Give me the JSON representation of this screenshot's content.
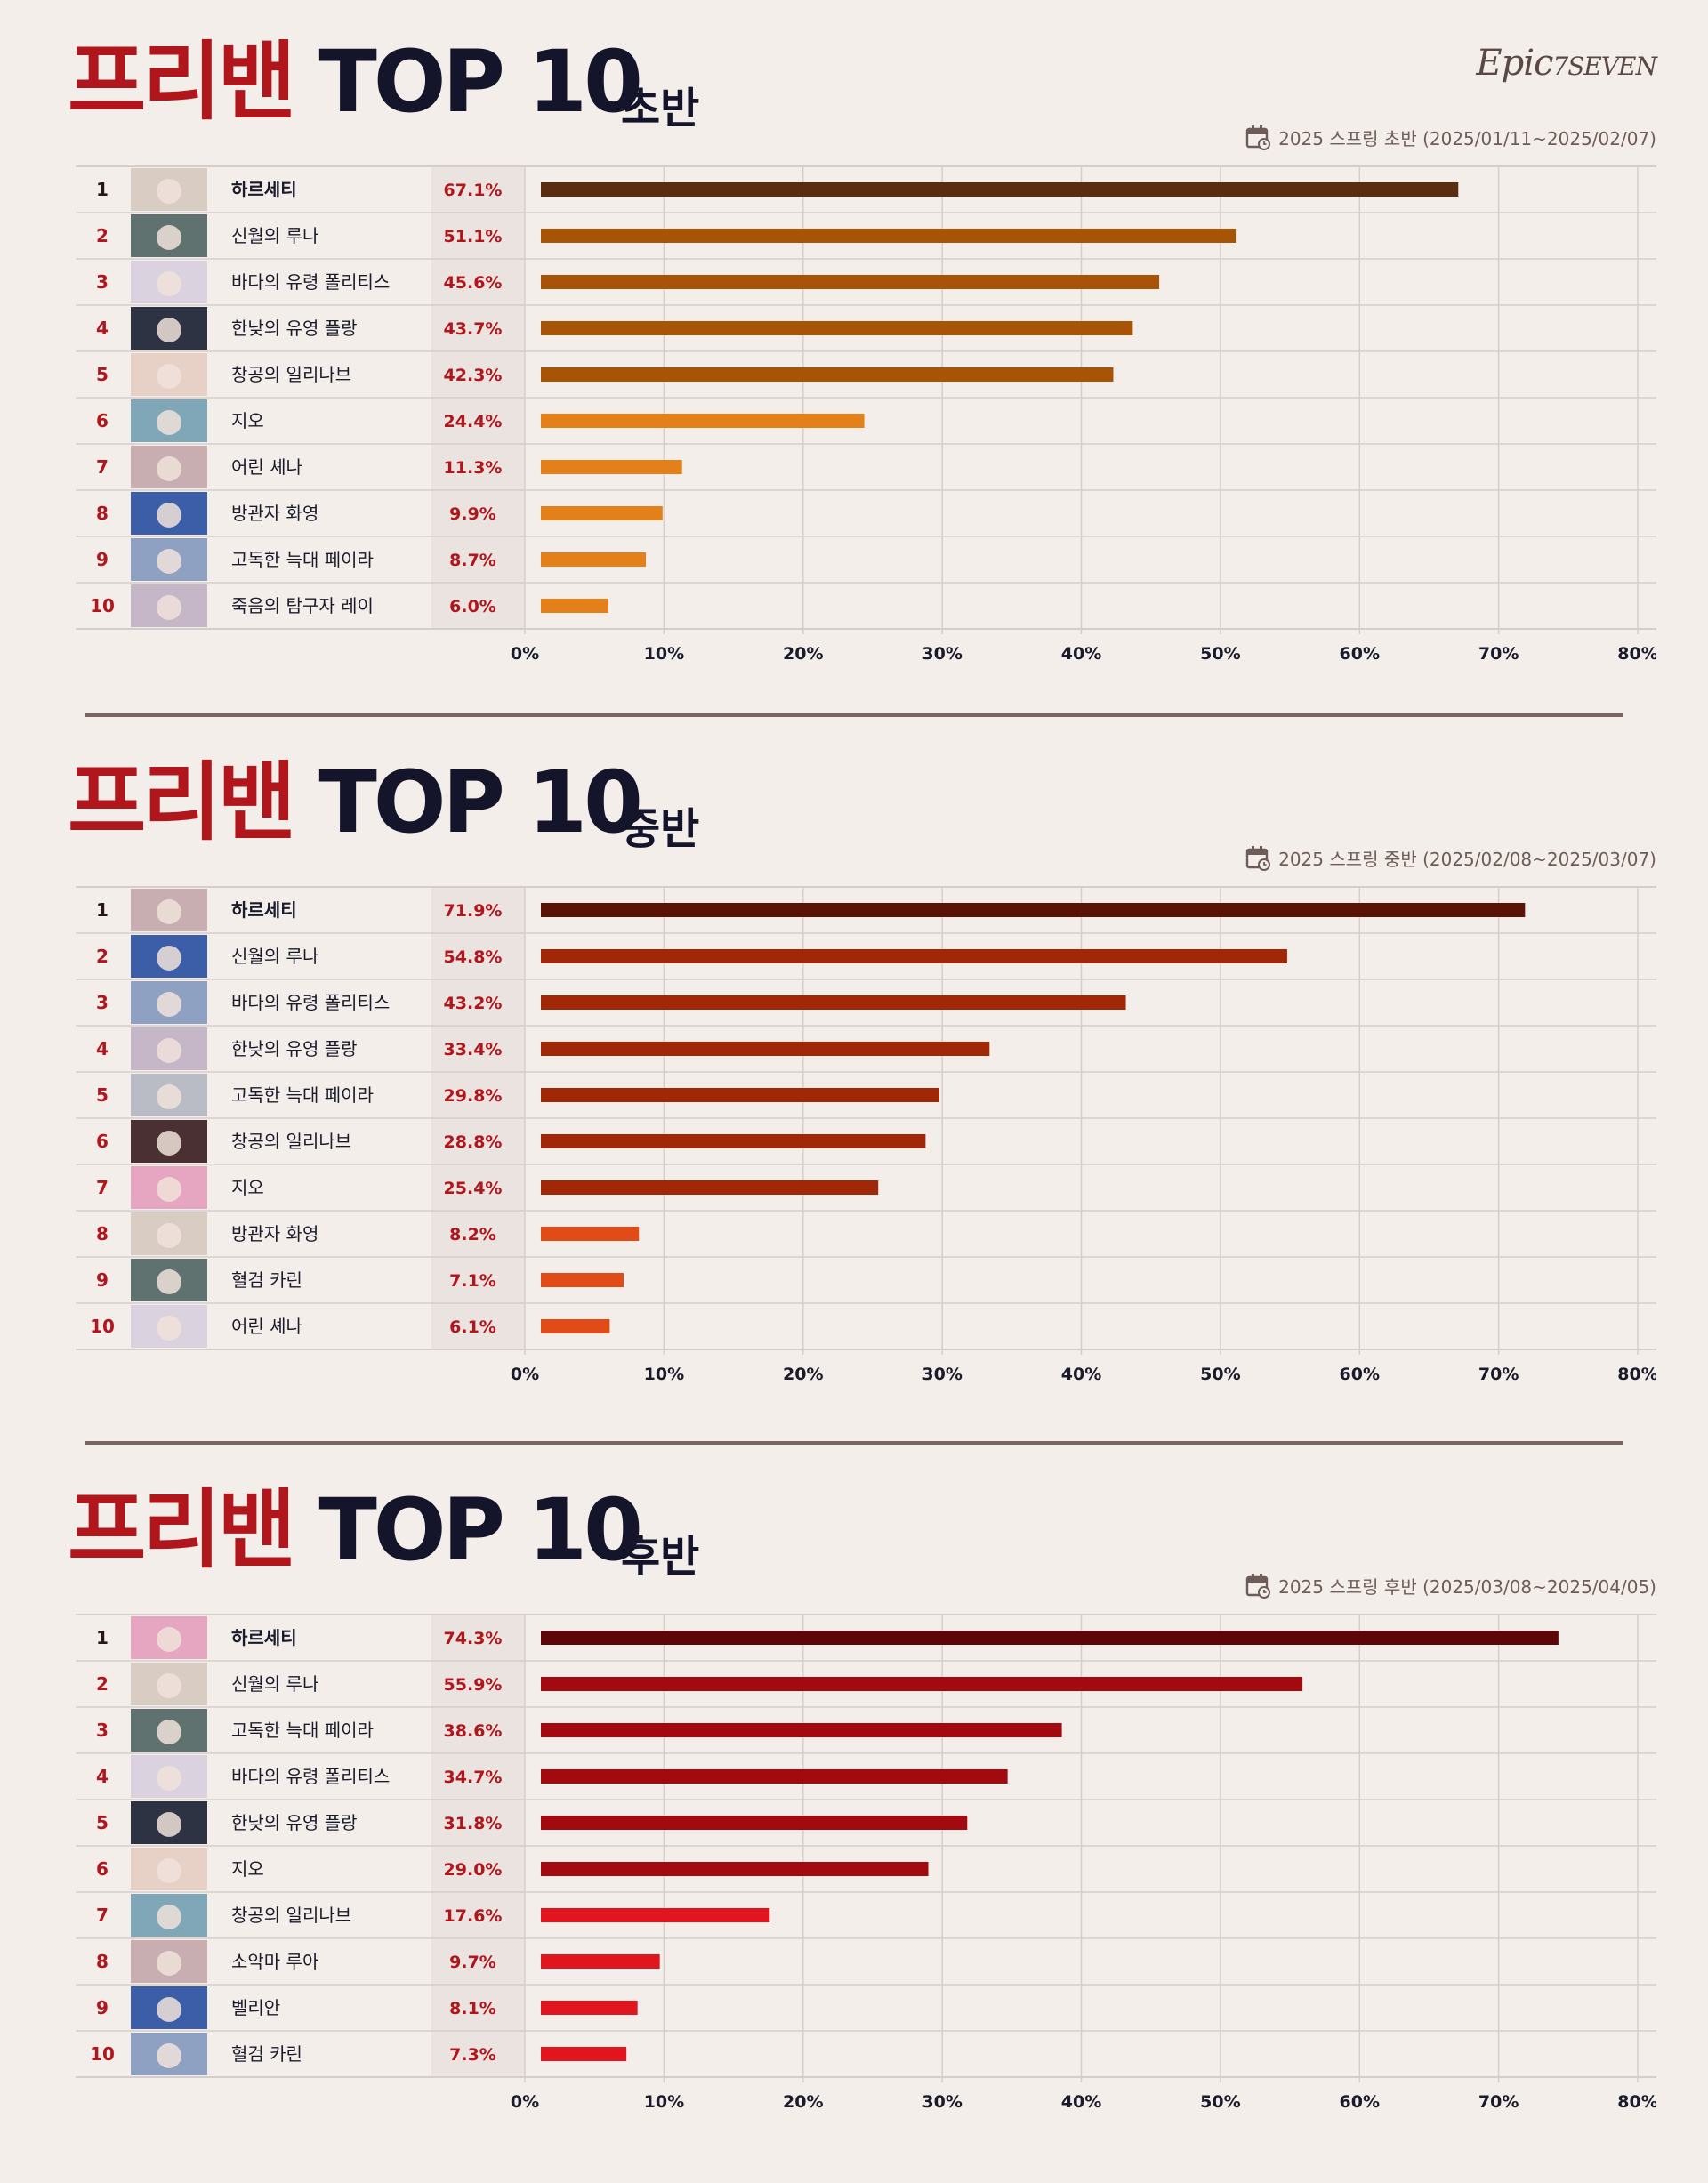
{
  "logo": {
    "text_epic": "Epic",
    "text_seven": "7SEVEN"
  },
  "sections": [
    {
      "title_red": "프리밴",
      "title_dark": " TOP 10",
      "subtitle": "초반",
      "period": "2025 스프링 초반 (2025/01/11~2025/02/07)",
      "colors": {
        "top": "#5a2c10",
        "mid": "#a85406",
        "low": "#e48019"
      }
    },
    {
      "title_red": "프리밴",
      "title_dark": " TOP 10",
      "subtitle": "중반",
      "period": "2025 스프링 중반 (2025/02/08~2025/03/07)",
      "colors": {
        "top": "#5a1406",
        "mid": "#a12806",
        "low": "#e04b18"
      }
    },
    {
      "title_red": "프리밴",
      "title_dark": " TOP 10",
      "subtitle": "후반",
      "period": "2025 스프링 후반 (2025/03/08~2025/04/05)",
      "colors": {
        "top": "#5e0508",
        "mid": "#a20a10",
        "low": "#e0151e"
      }
    }
  ],
  "chart_data": [
    {
      "type": "bar",
      "orientation": "horizontal",
      "categories": [
        "하르세티",
        "신월의 루나",
        "바다의 유령 폴리티스",
        "한낮의 유영 플랑",
        "창공의 일리나브",
        "지오",
        "어린 셰나",
        "방관자 화영",
        "고독한 늑대 페이라",
        "죽음의 탐구자 레이"
      ],
      "ranks": [
        "1",
        "2",
        "3",
        "4",
        "5",
        "6",
        "7",
        "8",
        "9",
        "10"
      ],
      "values": [
        67.1,
        51.1,
        45.6,
        43.7,
        42.3,
        24.4,
        11.3,
        9.9,
        8.7,
        6.0
      ],
      "value_labels": [
        "67.1%",
        "51.1%",
        "45.6%",
        "43.7%",
        "42.3%",
        "24.4%",
        "11.3%",
        "9.9%",
        "8.7%",
        "6.0%"
      ],
      "xlim": [
        0,
        80
      ],
      "xticks": [
        "0%",
        "10%",
        "20%",
        "30%",
        "40%",
        "50%",
        "60%",
        "70%",
        "80%"
      ],
      "grid": true
    },
    {
      "type": "bar",
      "orientation": "horizontal",
      "categories": [
        "하르세티",
        "신월의 루나",
        "바다의 유령 폴리티스",
        "한낮의 유영 플랑",
        "고독한 늑대 페이라",
        "창공의 일리나브",
        "지오",
        "방관자 화영",
        "혈검 카린",
        "어린 셰나"
      ],
      "ranks": [
        "1",
        "2",
        "3",
        "4",
        "5",
        "6",
        "7",
        "8",
        "9",
        "10"
      ],
      "values": [
        71.9,
        54.8,
        43.2,
        33.4,
        29.8,
        28.8,
        25.4,
        8.2,
        7.1,
        6.1
      ],
      "value_labels": [
        "71.9%",
        "54.8%",
        "43.2%",
        "33.4%",
        "29.8%",
        "28.8%",
        "25.4%",
        "8.2%",
        "7.1%",
        "6.1%"
      ],
      "xlim": [
        0,
        80
      ],
      "xticks": [
        "0%",
        "10%",
        "20%",
        "30%",
        "40%",
        "50%",
        "60%",
        "70%",
        "80%"
      ],
      "grid": true
    },
    {
      "type": "bar",
      "orientation": "horizontal",
      "categories": [
        "하르세티",
        "신월의 루나",
        "고독한 늑대 페이라",
        "바다의 유령 폴리티스",
        "한낮의 유영 플랑",
        "지오",
        "창공의 일리나브",
        "소악마 루아",
        "벨리안",
        "혈검 카린"
      ],
      "ranks": [
        "1",
        "2",
        "3",
        "4",
        "5",
        "6",
        "7",
        "8",
        "9",
        "10"
      ],
      "values": [
        74.3,
        55.9,
        38.6,
        34.7,
        31.8,
        29.0,
        17.6,
        9.7,
        8.1,
        7.3
      ],
      "value_labels": [
        "74.3%",
        "55.9%",
        "38.6%",
        "34.7%",
        "31.8%",
        "29.0%",
        "17.6%",
        "9.7%",
        "8.1%",
        "7.3%"
      ],
      "xlim": [
        0,
        80
      ],
      "xticks": [
        "0%",
        "10%",
        "20%",
        "30%",
        "40%",
        "50%",
        "60%",
        "70%",
        "80%"
      ],
      "grid": true
    }
  ]
}
